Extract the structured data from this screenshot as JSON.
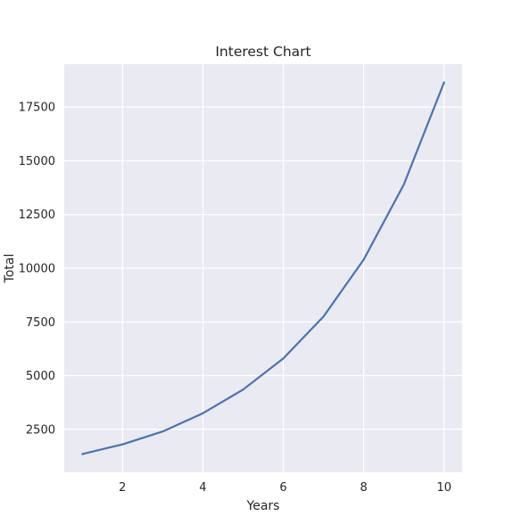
{
  "chart_data": {
    "type": "line",
    "title": "Interest Chart",
    "xlabel": "Years",
    "ylabel": "Total",
    "xlim": [
      0.55,
      10.45
    ],
    "ylim": [
      500,
      19500
    ],
    "xticks": [
      2,
      4,
      6,
      8,
      10
    ],
    "xtick_labels": [
      "2",
      "4",
      "6",
      "8",
      "10"
    ],
    "yticks": [
      2500,
      5000,
      7500,
      10000,
      12500,
      15000,
      17500
    ],
    "ytick_labels": [
      "2500",
      "5000",
      "7500",
      "10000",
      "12500",
      "15000",
      "17500"
    ],
    "grid": true,
    "legend": "none",
    "series": [
      {
        "x": [
          1,
          2,
          3,
          4,
          5,
          6,
          7,
          8,
          9,
          10
        ],
        "values": [
          1350,
          1800,
          2400,
          3250,
          4350,
          5800,
          7750,
          10400,
          13900,
          18650
        ],
        "color": "#4c72b0"
      }
    ],
    "colors": {
      "background": "#eaeaf2",
      "grid": "#ffffff",
      "line": "#4c72b0",
      "text": "#262626"
    }
  }
}
